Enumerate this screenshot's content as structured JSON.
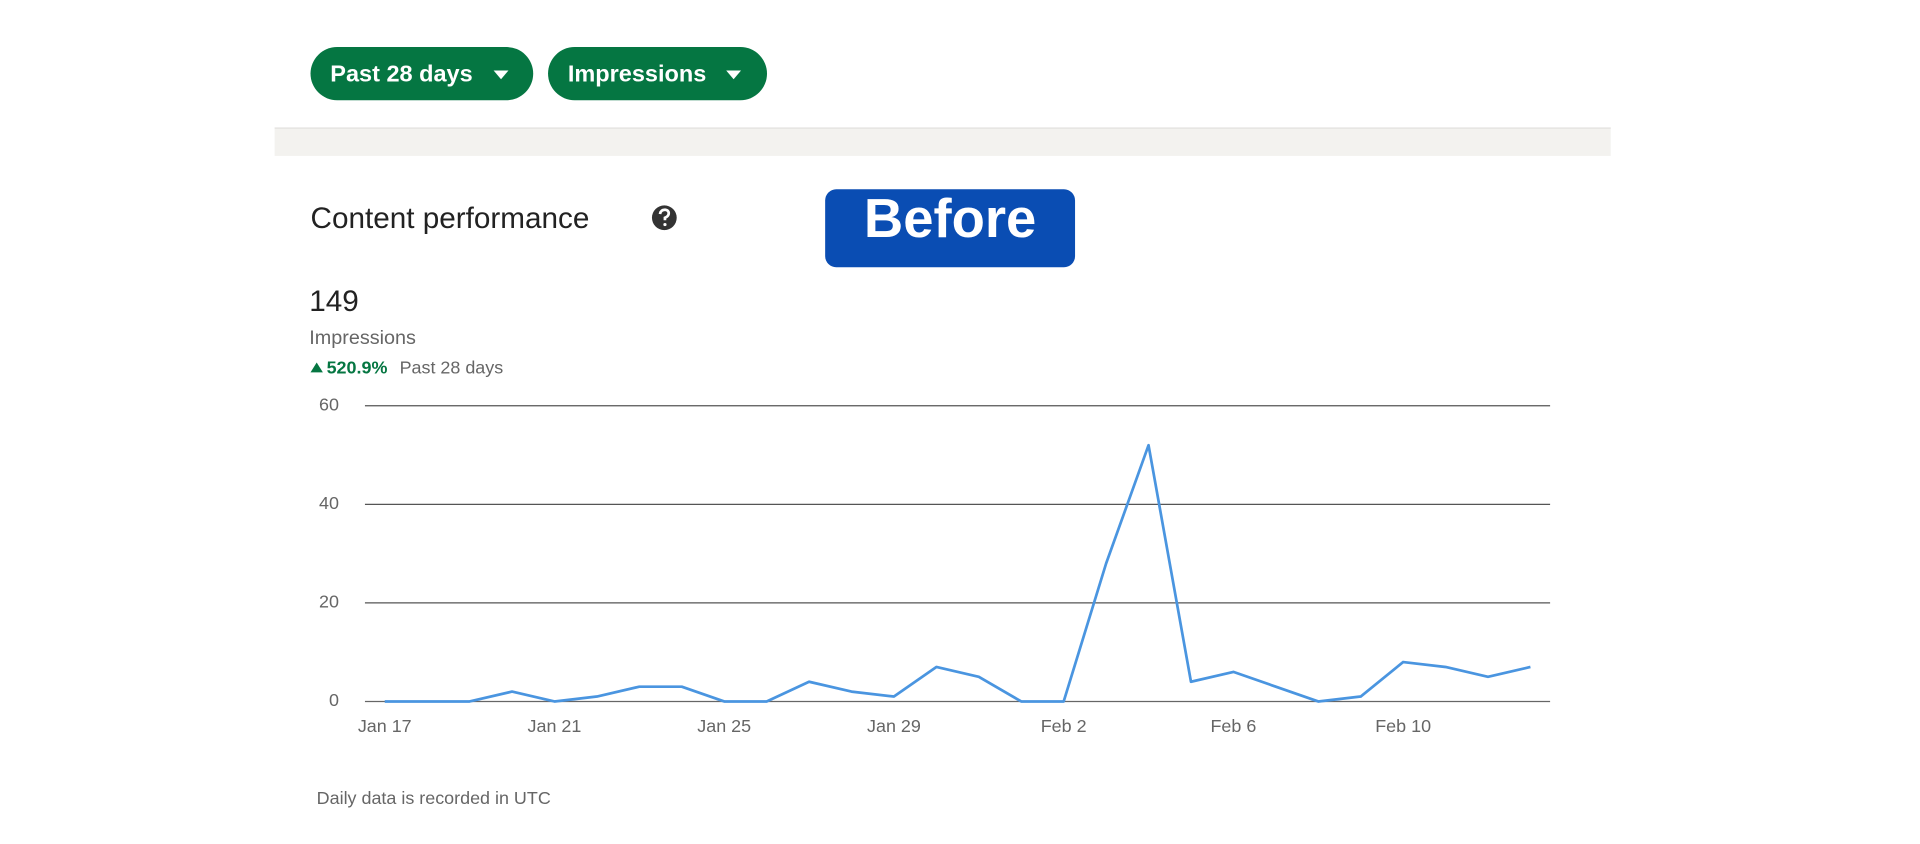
{
  "page": {
    "filters": [
      "Past 28 days",
      "Impressions"
    ],
    "section_title": "Content performance",
    "badge": "Before",
    "total": "149",
    "metric": "Impressions",
    "change": "520.9%",
    "period": "Past 28 days",
    "footnote": "Daily data is recorded in UTC"
  },
  "chart_data": {
    "type": "line",
    "categories": [
      "Jan 17",
      null,
      null,
      null,
      "Jan 21",
      null,
      null,
      null,
      "Jan 25",
      null,
      null,
      null,
      "Jan 29",
      null,
      null,
      null,
      "Feb 2",
      null,
      null,
      null,
      "Feb 6",
      null,
      null,
      null,
      "Feb 10",
      null,
      null,
      null
    ],
    "series": [
      {
        "name": "Impressions",
        "color": "#4a95e0",
        "values": [
          0,
          0,
          0,
          2,
          0,
          1,
          3,
          3,
          0,
          0,
          4,
          2,
          1,
          7,
          5,
          0,
          0,
          28,
          52,
          4,
          6,
          3,
          0,
          1,
          8,
          7,
          5,
          7
        ]
      }
    ],
    "ylim": [
      0,
      60
    ],
    "yticks": [
      0,
      20,
      40,
      60
    ],
    "grid": true
  }
}
